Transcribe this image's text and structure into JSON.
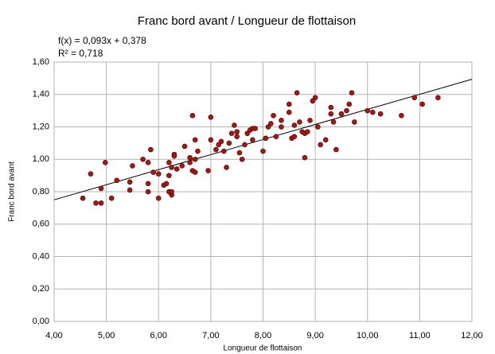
{
  "chart_data": {
    "type": "scatter",
    "title": "Franc bord avant / Longueur de flottaison",
    "annotations": [
      "f(x) = 0,093x + 0,378",
      "R² = 0,718"
    ],
    "x_label": "Longueur de flottaison",
    "y_label": "Franc bord avant",
    "color": "#9b1c1c",
    "trendline": {
      "slope": 0.093,
      "intercept": 0.378,
      "color": "#000000"
    },
    "grid": true,
    "xlim": [
      4,
      12
    ],
    "ylim": [
      0,
      1.6
    ],
    "xticks": [
      {
        "value": 4,
        "label": "4,00"
      },
      {
        "value": 5,
        "label": "5,00"
      },
      {
        "value": 6,
        "label": "6,00"
      },
      {
        "value": 7,
        "label": "7,00"
      },
      {
        "value": 8,
        "label": "8,00"
      },
      {
        "value": 9,
        "label": "9,00"
      },
      {
        "value": 10,
        "label": "10,00"
      },
      {
        "value": 11,
        "label": "11,00"
      },
      {
        "value": 12,
        "label": "12,00"
      }
    ],
    "yticks": [
      {
        "value": 0,
        "label": "0,00"
      },
      {
        "value": 0.2,
        "label": "0,20"
      },
      {
        "value": 0.4,
        "label": "0,40"
      },
      {
        "value": 0.6,
        "label": "0,60"
      },
      {
        "value": 0.8,
        "label": "0,80"
      },
      {
        "value": 1,
        "label": "1,00"
      },
      {
        "value": 1.2,
        "label": "1,20"
      },
      {
        "value": 1.4,
        "label": "1,40"
      },
      {
        "value": 1.6,
        "label": "1,60"
      }
    ],
    "x": [
      4.55,
      4.7,
      4.8,
      4.9,
      4.9,
      4.98,
      5.1,
      5.2,
      5.45,
      5.45,
      5.5,
      5.7,
      5.8,
      5.8,
      5.8,
      5.85,
      5.9,
      6.0,
      6.0,
      6.1,
      6.15,
      6.2,
      6.2,
      6.25,
      6.25,
      6.25,
      6.2,
      6.3,
      6.3,
      6.35,
      6.45,
      6.5,
      6.6,
      6.6,
      6.65,
      6.65,
      6.7,
      6.7,
      6.7,
      6.75,
      6.95,
      7.0,
      7.0,
      7.1,
      7.15,
      7.2,
      7.25,
      7.3,
      7.35,
      7.4,
      7.45,
      7.5,
      7.5,
      7.55,
      7.65,
      7.6,
      7.7,
      7.75,
      7.8,
      7.85,
      7.8,
      8.0,
      8.05,
      8.1,
      8.15,
      8.2,
      8.25,
      8.35,
      8.35,
      8.5,
      8.5,
      8.55,
      8.6,
      8.6,
      8.65,
      8.7,
      8.75,
      8.8,
      8.8,
      8.85,
      8.9,
      8.95,
      9.0,
      9.05,
      9.1,
      9.2,
      9.3,
      9.3,
      9.35,
      9.4,
      9.5,
      9.6,
      9.65,
      9.7,
      9.75,
      10.0,
      10.1,
      10.25,
      10.65,
      10.9,
      11.05,
      11.35
    ],
    "values": [
      0.76,
      0.91,
      0.73,
      0.73,
      0.82,
      0.98,
      0.76,
      0.87,
      0.86,
      0.81,
      0.96,
      1.0,
      0.98,
      0.85,
      0.8,
      1.06,
      0.92,
      0.91,
      0.76,
      0.84,
      0.85,
      0.9,
      0.8,
      0.78,
      0.8,
      0.95,
      0.98,
      1.03,
      1.02,
      0.94,
      0.96,
      1.08,
      1.01,
      0.98,
      1.27,
      0.93,
      1.0,
      0.92,
      1.12,
      1.05,
      0.93,
      1.26,
      1.12,
      1.06,
      1.09,
      1.11,
      1.05,
      0.95,
      1.1,
      1.16,
      1.21,
      1.17,
      1.14,
      1.04,
      1.09,
      1.0,
      1.16,
      1.18,
      1.19,
      1.19,
      1.12,
      1.05,
      1.13,
      1.2,
      1.22,
      1.27,
      1.14,
      1.24,
      1.2,
      1.34,
      1.29,
      1.13,
      1.21,
      1.14,
      1.41,
      1.23,
      1.17,
      1.16,
      1.01,
      1.17,
      1.24,
      1.36,
      1.38,
      1.2,
      1.09,
      1.12,
      1.28,
      1.32,
      1.23,
      1.06,
      1.28,
      1.3,
      1.34,
      1.41,
      1.23,
      1.3,
      1.29,
      1.28,
      1.27,
      1.38,
      1.34,
      1.38
    ]
  }
}
